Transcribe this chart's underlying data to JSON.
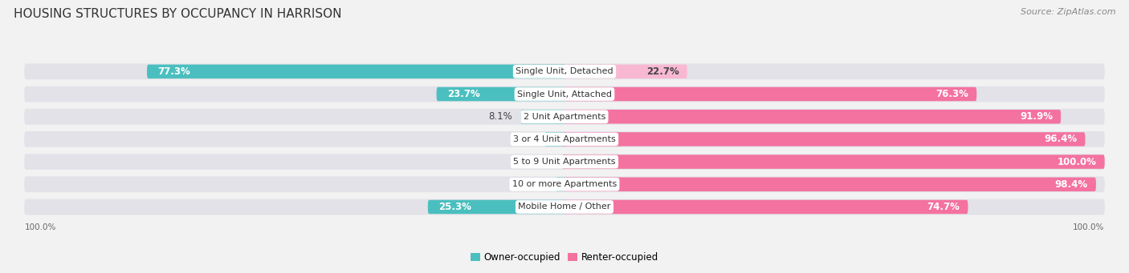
{
  "title": "HOUSING STRUCTURES BY OCCUPANCY IN HARRISON",
  "source": "Source: ZipAtlas.com",
  "categories": [
    "Single Unit, Detached",
    "Single Unit, Attached",
    "2 Unit Apartments",
    "3 or 4 Unit Apartments",
    "5 to 9 Unit Apartments",
    "10 or more Apartments",
    "Mobile Home / Other"
  ],
  "owner_pct": [
    77.3,
    23.7,
    8.1,
    3.7,
    0.0,
    1.6,
    25.3
  ],
  "renter_pct": [
    22.7,
    76.3,
    91.9,
    96.4,
    100.0,
    98.4,
    74.7
  ],
  "owner_color": "#4bbfbf",
  "renter_color": "#f472a0",
  "renter_color_light": "#f9b8d2",
  "bg_color": "#f2f2f2",
  "bar_bg": "#e2e2e8",
  "title_fontsize": 11,
  "source_fontsize": 8,
  "bar_label_fontsize": 8.5,
  "category_fontsize": 8,
  "legend_fontsize": 8.5,
  "axis_label_fontsize": 7.5,
  "owner_label_inside_threshold": 10,
  "renter_label_inside_threshold": 10
}
